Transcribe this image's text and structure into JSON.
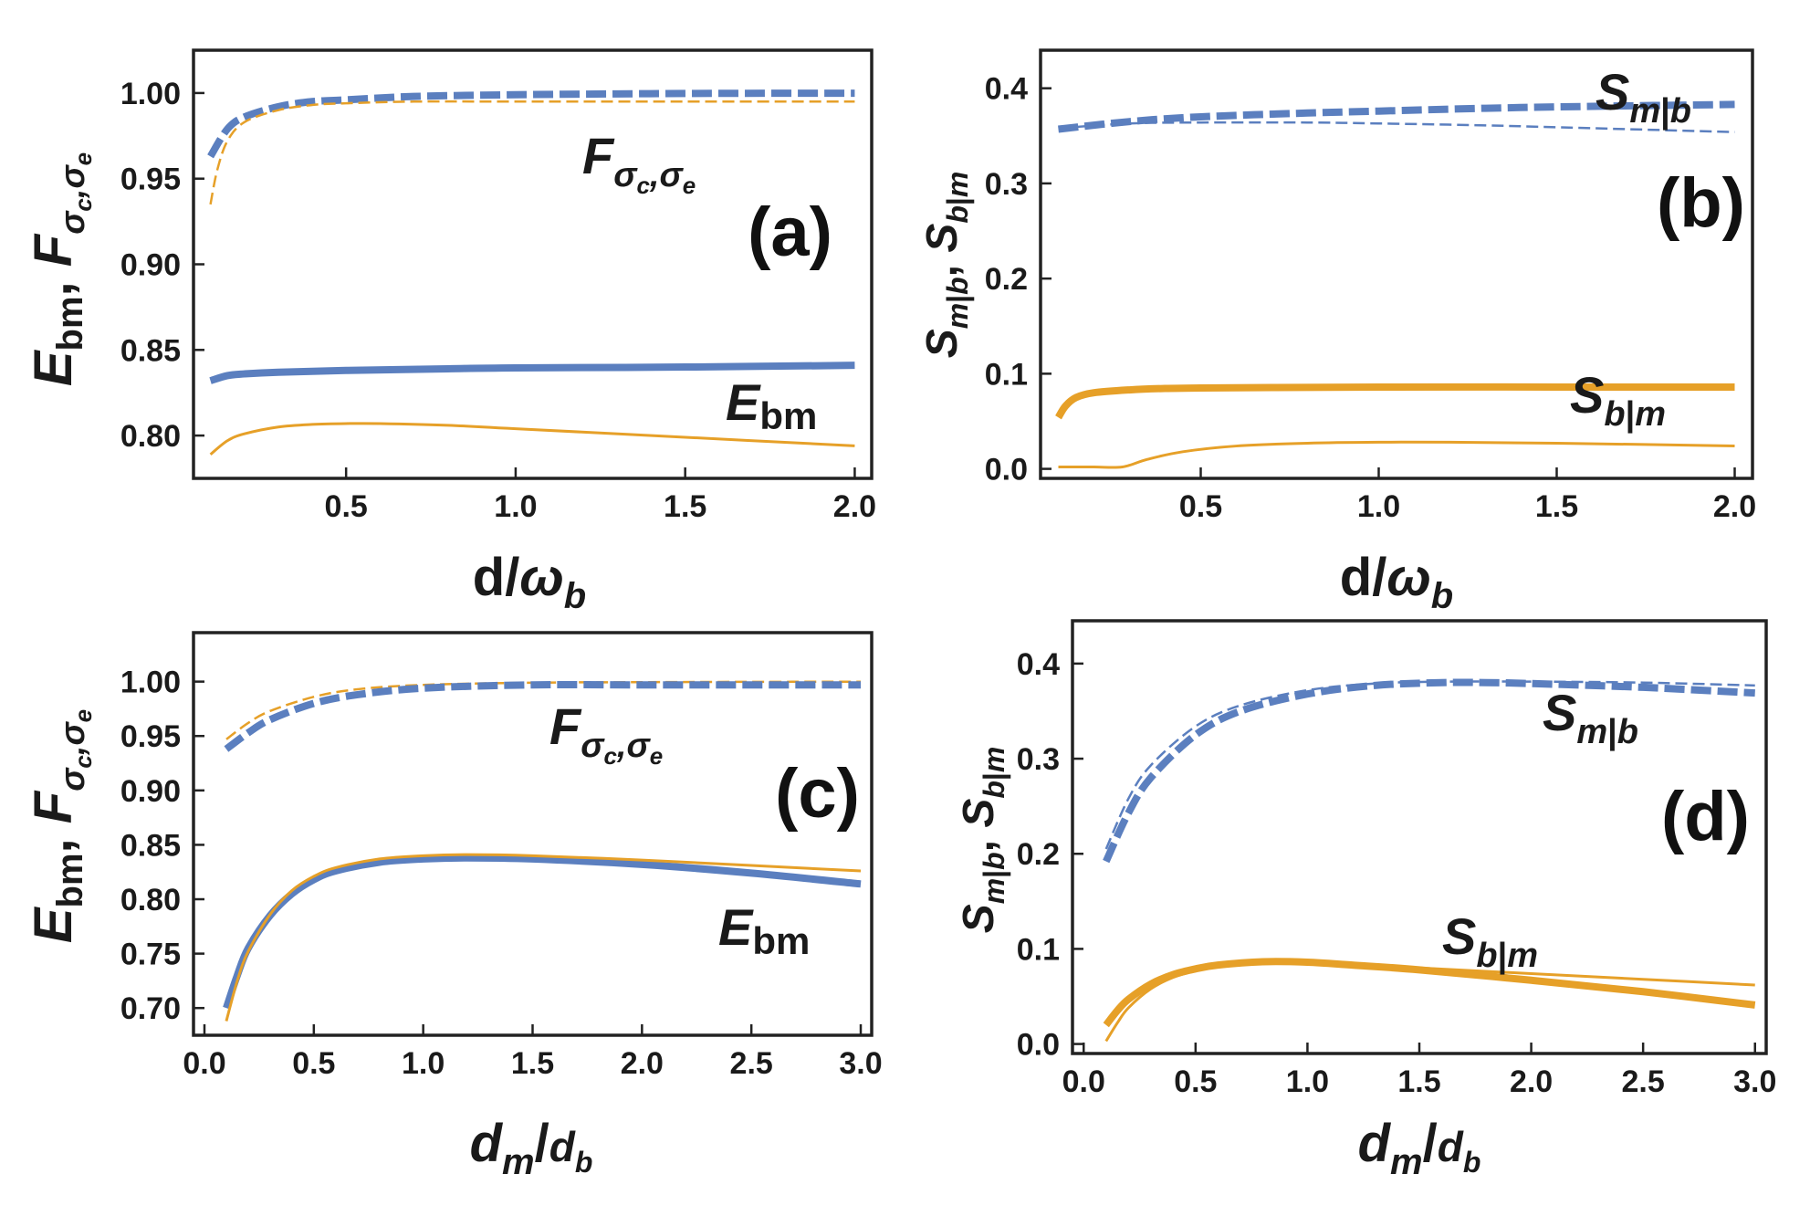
{
  "colors": {
    "blue": "#5b7fbf",
    "orange": "#e6a028",
    "frame": "#222222"
  },
  "chart_data": [
    {
      "panel": "(a)",
      "type": "line",
      "xlabel": "d/ω_b",
      "ylabel": "E_bm, F_σc,σe",
      "xlim": [
        0.05,
        2.05
      ],
      "ylim": [
        0.775,
        1.025
      ],
      "xticks": [
        "0.5",
        "1.0",
        "1.5",
        "2.0"
      ],
      "yticks": [
        "0.80",
        "0.85",
        "0.90",
        "0.95",
        "1.00"
      ],
      "annotations": [
        "F_σc,σe",
        "E_bm"
      ],
      "series": [
        {
          "name": "F_σc,σe (blue, thick dashed)",
          "color": "blue",
          "style": "dashed-thick",
          "x": [
            0.1,
            0.15,
            0.2,
            0.3,
            0.4,
            0.5,
            0.7,
            1.0,
            1.3,
            1.6,
            2.0
          ],
          "y": [
            0.963,
            0.979,
            0.986,
            0.992,
            0.995,
            0.996,
            0.998,
            0.999,
            0.9995,
            0.9998,
            0.9999
          ]
        },
        {
          "name": "F_σc,σe (orange, thin dashed)",
          "color": "orange",
          "style": "dashed-thin",
          "x": [
            0.1,
            0.12,
            0.15,
            0.2,
            0.3,
            0.4,
            0.5,
            0.7,
            1.0,
            1.5,
            2.0
          ],
          "y": [
            0.935,
            0.955,
            0.972,
            0.983,
            0.99,
            0.993,
            0.994,
            0.995,
            0.995,
            0.995,
            0.995
          ]
        },
        {
          "name": "E_bm (blue, thick)",
          "color": "blue",
          "style": "solid-thick",
          "x": [
            0.1,
            0.15,
            0.2,
            0.3,
            0.5,
            0.8,
            1.0,
            1.5,
            2.0
          ],
          "y": [
            0.832,
            0.835,
            0.836,
            0.837,
            0.838,
            0.839,
            0.8395,
            0.84,
            0.841
          ]
        },
        {
          "name": "E_bm (orange, thin)",
          "color": "orange",
          "style": "solid-thin",
          "x": [
            0.1,
            0.15,
            0.2,
            0.3,
            0.4,
            0.5,
            0.6,
            0.8,
            1.0,
            1.5,
            2.0
          ],
          "y": [
            0.789,
            0.797,
            0.801,
            0.805,
            0.8065,
            0.807,
            0.807,
            0.806,
            0.804,
            0.799,
            0.794
          ]
        }
      ]
    },
    {
      "panel": "(b)",
      "type": "line",
      "xlabel": "d/ω_b",
      "ylabel": "S_m|b, S_b|m",
      "xlim": [
        0.05,
        2.05
      ],
      "ylim": [
        -0.01,
        0.44
      ],
      "xticks": [
        "0.5",
        "1.0",
        "1.5",
        "2.0"
      ],
      "yticks": [
        "0.0",
        "0.1",
        "0.2",
        "0.3",
        "0.4"
      ],
      "annotations": [
        "S_m|b",
        "S_b|m"
      ],
      "series": [
        {
          "name": "S_m|b (blue, thick dashed)",
          "color": "blue",
          "style": "dashed-thick",
          "x": [
            0.1,
            0.3,
            0.5,
            0.8,
            1.0,
            1.3,
            1.6,
            2.0
          ],
          "y": [
            0.357,
            0.365,
            0.37,
            0.374,
            0.376,
            0.379,
            0.381,
            0.383
          ]
        },
        {
          "name": "S_m|b (blue, thin dashed)",
          "color": "blue",
          "style": "dashed-thin",
          "x": [
            0.1,
            0.3,
            0.5,
            0.8,
            1.0,
            1.3,
            1.6,
            2.0
          ],
          "y": [
            0.358,
            0.363,
            0.364,
            0.364,
            0.363,
            0.361,
            0.358,
            0.354
          ]
        },
        {
          "name": "S_b|m (orange, thick)",
          "color": "orange",
          "style": "solid-thick",
          "x": [
            0.1,
            0.12,
            0.15,
            0.2,
            0.3,
            0.4,
            0.5,
            0.7,
            1.0,
            1.5,
            2.0
          ],
          "y": [
            0.054,
            0.066,
            0.075,
            0.08,
            0.083,
            0.0845,
            0.085,
            0.0855,
            0.086,
            0.086,
            0.086
          ]
        },
        {
          "name": "S_b|m (orange, thin)",
          "color": "orange",
          "style": "solid-thin",
          "x": [
            0.1,
            0.2,
            0.28,
            0.35,
            0.45,
            0.6,
            0.8,
            1.0,
            1.2,
            1.5,
            2.0
          ],
          "y": [
            0.002,
            0.002,
            0.002,
            0.01,
            0.018,
            0.024,
            0.027,
            0.028,
            0.028,
            0.027,
            0.024
          ]
        }
      ]
    },
    {
      "panel": "(c)",
      "type": "line",
      "xlabel": "d_m/d_b",
      "ylabel": "E_bm, F_σc,σe",
      "xlim": [
        -0.05,
        3.05
      ],
      "ylim": [
        0.675,
        1.045
      ],
      "xticks": [
        "0.0",
        "0.5",
        "1.0",
        "1.5",
        "2.0",
        "2.5",
        "3.0"
      ],
      "yticks": [
        "0.70",
        "0.75",
        "0.80",
        "0.85",
        "0.90",
        "0.95",
        "1.00"
      ],
      "annotations": [
        "F_σc,σe",
        "E_bm"
      ],
      "series": [
        {
          "name": "F_σc,σe (orange, thin dashed)",
          "color": "orange",
          "style": "dashed-thin",
          "x": [
            0.1,
            0.2,
            0.3,
            0.5,
            0.7,
            1.0,
            1.5,
            2.0,
            2.5,
            3.0
          ],
          "y": [
            0.947,
            0.962,
            0.973,
            0.986,
            0.993,
            0.997,
            0.999,
            0.9995,
            0.9998,
            0.9999
          ]
        },
        {
          "name": "F_σc,σe (blue, thick dashed)",
          "color": "blue",
          "style": "dashed-thick",
          "x": [
            0.1,
            0.2,
            0.3,
            0.5,
            0.7,
            1.0,
            1.5,
            2.0,
            2.5,
            3.0
          ],
          "y": [
            0.938,
            0.953,
            0.965,
            0.98,
            0.988,
            0.994,
            0.997,
            0.997,
            0.997,
            0.997
          ]
        },
        {
          "name": "E_bm (blue, thick)",
          "color": "blue",
          "style": "solid-thick",
          "x": [
            0.1,
            0.15,
            0.2,
            0.3,
            0.4,
            0.5,
            0.6,
            0.8,
            1.0,
            1.2,
            1.5,
            2.0,
            2.5,
            3.0
          ],
          "y": [
            0.7,
            0.73,
            0.755,
            0.785,
            0.805,
            0.818,
            0.826,
            0.834,
            0.837,
            0.838,
            0.837,
            0.832,
            0.824,
            0.814
          ]
        },
        {
          "name": "E_bm (orange, thin)",
          "color": "orange",
          "style": "solid-thin",
          "x": [
            0.1,
            0.15,
            0.2,
            0.3,
            0.4,
            0.5,
            0.6,
            0.8,
            1.0,
            1.2,
            1.5,
            2.0,
            2.5,
            3.0
          ],
          "y": [
            0.688,
            0.725,
            0.752,
            0.786,
            0.808,
            0.821,
            0.829,
            0.837,
            0.84,
            0.841,
            0.84,
            0.836,
            0.831,
            0.826
          ]
        }
      ]
    },
    {
      "panel": "(d)",
      "type": "line",
      "xlabel": "d_m/d_b",
      "ylabel": "S_m|b, S_b|m",
      "xlim": [
        -0.05,
        3.05
      ],
      "ylim": [
        -0.01,
        0.445
      ],
      "xticks": [
        "0.0",
        "0.5",
        "1.0",
        "1.5",
        "2.0",
        "2.5",
        "3.0"
      ],
      "yticks": [
        "0.0",
        "0.1",
        "0.2",
        "0.3",
        "0.4"
      ],
      "annotations": [
        "S_m|b",
        "S_b|m"
      ],
      "series": [
        {
          "name": "S_m|b (blue, thin dashed)",
          "color": "blue",
          "style": "dashed-thin",
          "x": [
            0.1,
            0.2,
            0.3,
            0.5,
            0.7,
            1.0,
            1.3,
            1.6,
            2.0,
            2.5,
            3.0
          ],
          "y": [
            0.205,
            0.258,
            0.293,
            0.334,
            0.356,
            0.372,
            0.379,
            0.381,
            0.381,
            0.38,
            0.377
          ]
        },
        {
          "name": "S_m|b (blue, thick dashed)",
          "color": "blue",
          "style": "dashed-thick",
          "x": [
            0.1,
            0.2,
            0.3,
            0.5,
            0.7,
            1.0,
            1.3,
            1.6,
            1.8,
            2.0,
            2.5,
            3.0
          ],
          "y": [
            0.192,
            0.243,
            0.28,
            0.325,
            0.35,
            0.368,
            0.377,
            0.38,
            0.38,
            0.379,
            0.375,
            0.369
          ]
        },
        {
          "name": "S_b|m (orange, thick)",
          "color": "orange",
          "style": "solid-thick",
          "x": [
            0.1,
            0.15,
            0.2,
            0.3,
            0.4,
            0.5,
            0.6,
            0.8,
            1.0,
            1.2,
            1.5,
            2.0,
            2.5,
            3.0
          ],
          "y": [
            0.02,
            0.035,
            0.047,
            0.063,
            0.073,
            0.079,
            0.083,
            0.0865,
            0.086,
            0.083,
            0.078,
            0.067,
            0.055,
            0.041
          ]
        },
        {
          "name": "S_b|m (orange, thin)",
          "color": "orange",
          "style": "solid-thin",
          "x": [
            0.1,
            0.15,
            0.2,
            0.3,
            0.4,
            0.5,
            0.6,
            0.8,
            1.0,
            1.2,
            1.5,
            2.0,
            2.5,
            3.0
          ],
          "y": [
            0.003,
            0.022,
            0.038,
            0.058,
            0.07,
            0.077,
            0.081,
            0.085,
            0.086,
            0.084,
            0.08,
            0.074,
            0.068,
            0.062
          ]
        }
      ]
    }
  ]
}
